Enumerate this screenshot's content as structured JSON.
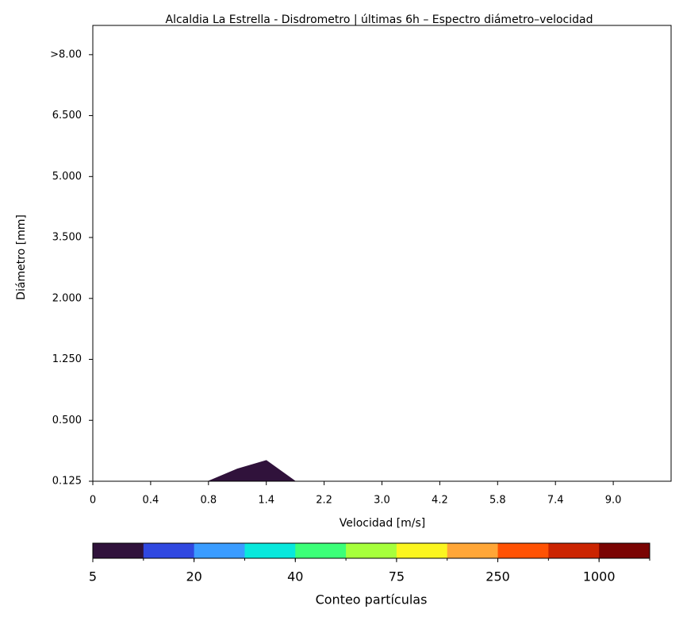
{
  "chart_data": {
    "type": "area",
    "title": "Alcaldia La Estrella - Disdrometro | últimas 6h – Espectro diámetro–velocidad",
    "x_label": "Velocidad [m/s]",
    "y_label": "Diámetro [mm]",
    "x": [
      2.0,
      2.5,
      3.0,
      3.5
    ],
    "values": [
      0,
      0.2,
      0.34,
      0
    ],
    "color": "#30123b",
    "xlim": [
      0,
      10
    ],
    "ylim": [
      0,
      7.48
    ],
    "xticks": [
      {
        "value": 0,
        "label": "0"
      },
      {
        "value": 1,
        "label": "0.4"
      },
      {
        "value": 2,
        "label": "0.8"
      },
      {
        "value": 3,
        "label": "1.4"
      },
      {
        "value": 4,
        "label": "2.2"
      },
      {
        "value": 5,
        "label": "3.0"
      },
      {
        "value": 6,
        "label": "4.2"
      },
      {
        "value": 7,
        "label": "5.8"
      },
      {
        "value": 8,
        "label": "7.4"
      },
      {
        "value": 9,
        "label": "9.0"
      }
    ],
    "yticks": [
      {
        "value": 0,
        "label": "0.125"
      },
      {
        "value": 1,
        "label": "0.500"
      },
      {
        "value": 2,
        "label": "1.250"
      },
      {
        "value": 3,
        "label": "2.000"
      },
      {
        "value": 4,
        "label": "3.500"
      },
      {
        "value": 5,
        "label": "5.000"
      },
      {
        "value": 6,
        "label": "6.500"
      },
      {
        "value": 7,
        "label": ">8.00"
      }
    ],
    "colorbar": {
      "label": "Conteo partículas",
      "colors": [
        "#30123b",
        "#3048e0",
        "#3a9cff",
        "#08e8dc",
        "#3cff78",
        "#a6ff3c",
        "#fbf51f",
        "#ffa637",
        "#ff5204",
        "#cb2401",
        "#7a0403"
      ],
      "ticks": [
        5,
        20,
        40,
        75,
        250,
        1000
      ]
    }
  }
}
